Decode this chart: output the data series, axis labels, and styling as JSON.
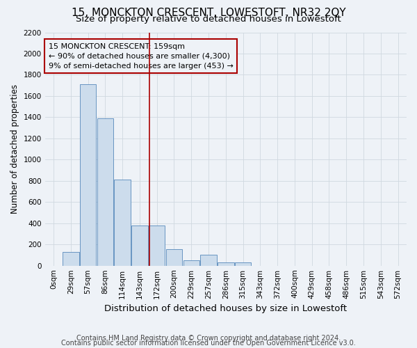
{
  "title": "15, MONCKTON CRESCENT, LOWESTOFT, NR32 2QY",
  "subtitle": "Size of property relative to detached houses in Lowestoft",
  "xlabel": "Distribution of detached houses by size in Lowestoft",
  "ylabel": "Number of detached properties",
  "categories": [
    "0sqm",
    "29sqm",
    "57sqm",
    "86sqm",
    "114sqm",
    "143sqm",
    "172sqm",
    "200sqm",
    "229sqm",
    "257sqm",
    "286sqm",
    "315sqm",
    "343sqm",
    "372sqm",
    "400sqm",
    "429sqm",
    "458sqm",
    "486sqm",
    "515sqm",
    "543sqm",
    "572sqm"
  ],
  "values": [
    0,
    130,
    1710,
    1390,
    810,
    380,
    380,
    155,
    50,
    100,
    30,
    30,
    0,
    0,
    0,
    0,
    0,
    0,
    0,
    0,
    0
  ],
  "bar_color": "#ccdcec",
  "bar_edge_color": "#5588bb",
  "grid_color": "#d0d8e0",
  "bg_color": "#eef2f7",
  "property_line_x": 5.55,
  "annotation_lines": [
    "15 MONCKTON CRESCENT: 159sqm",
    "← 90% of detached houses are smaller (4,300)",
    "9% of semi-detached houses are larger (453) →"
  ],
  "annotation_box_color": "#aa0000",
  "ylim": [
    0,
    2200
  ],
  "yticks": [
    0,
    200,
    400,
    600,
    800,
    1000,
    1200,
    1400,
    1600,
    1800,
    2000,
    2200
  ],
  "footnote1": "Contains HM Land Registry data © Crown copyright and database right 2024.",
  "footnote2": "Contains public sector information licensed under the Open Government Licence v3.0.",
  "title_fontsize": 11,
  "subtitle_fontsize": 9.5,
  "xlabel_fontsize": 9.5,
  "ylabel_fontsize": 8.5,
  "tick_fontsize": 7.5,
  "annot_fontsize": 8,
  "footnote_fontsize": 7
}
